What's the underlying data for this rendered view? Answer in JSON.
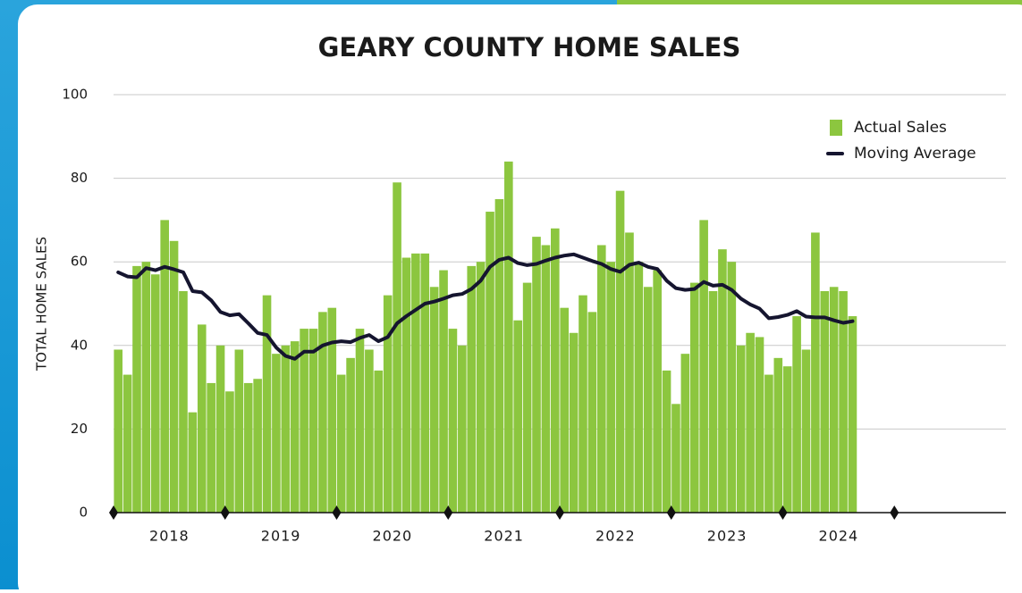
{
  "chart_data": {
    "type": "bar_line",
    "title": "GEARY COUNTY HOME SALES",
    "y_label": "TOTAL HOME SALES",
    "x_tick_labels": [
      "2018",
      "2019",
      "2020",
      "2021",
      "2022",
      "2023",
      "2024"
    ],
    "ylim": [
      0,
      100
    ],
    "yticks": [
      0,
      20,
      40,
      60,
      80,
      100
    ],
    "grid": true,
    "legend": "top-right",
    "series": [
      {
        "name": "Actual Sales",
        "type": "bar",
        "color": "#8cc63f",
        "values": [
          39,
          33,
          59,
          60,
          57,
          70,
          65,
          53,
          24,
          45,
          31,
          40,
          29,
          39,
          31,
          32,
          52,
          38,
          40,
          41,
          44,
          44,
          48,
          49,
          33,
          37,
          44,
          39,
          34,
          52,
          79,
          61,
          62,
          62,
          54,
          58,
          44,
          40,
          59,
          60,
          72,
          75,
          84,
          46,
          55,
          66,
          64,
          68,
          49,
          43,
          52,
          48,
          64,
          60,
          77,
          67,
          60,
          54,
          58,
          34,
          26,
          38,
          55,
          70,
          53,
          63,
          60,
          40,
          43,
          42,
          33,
          37,
          35,
          47,
          39,
          67,
          53,
          54,
          53,
          47
        ]
      },
      {
        "name": "Moving Average",
        "type": "line",
        "color": "#15152f",
        "values": [
          57.5,
          56.5,
          56.3,
          58.5,
          58,
          58.8,
          58.2,
          57.5,
          53,
          52.7,
          50.8,
          48,
          47.2,
          47.5,
          45.3,
          43,
          42.5,
          39.5,
          37.5,
          36.8,
          38.5,
          38.5,
          40,
          40.7,
          41,
          40.8,
          41.8,
          42.5,
          41,
          42,
          45.3,
          47,
          48.5,
          50,
          50.5,
          51.2,
          52,
          52.3,
          53.5,
          55.5,
          58.8,
          60.5,
          61,
          59.7,
          59.2,
          59.5,
          60.3,
          61,
          61.5,
          61.8,
          61,
          60.2,
          59.5,
          58.3,
          57.6,
          59.3,
          59.8,
          58.8,
          58.3,
          55.5,
          53.7,
          53.3,
          53.5,
          55.2,
          54.3,
          54.5,
          53.3,
          51.2,
          49.8,
          48.8,
          46.5,
          46.8,
          47.3,
          48.2,
          46.9,
          46.7,
          46.7,
          46,
          45.4,
          45.8
        ]
      }
    ]
  }
}
